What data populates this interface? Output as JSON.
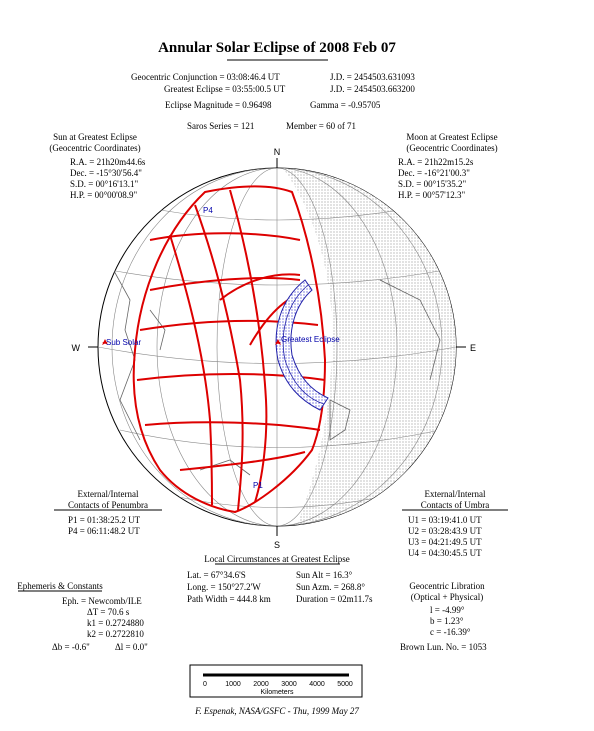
{
  "header": {
    "title": "Annular Solar Eclipse of 2008 Feb 07",
    "rows": [
      [
        "Geocentric Conjunction = 03:08:46.4 UT",
        "J.D. = 2454503.631093"
      ],
      [
        "Greatest Eclipse = 03:55:00.5 UT",
        "J.D. = 2454503.663200"
      ],
      [
        "Eclipse Magnitude = 0.96498",
        "Gamma = -0.95705"
      ],
      [
        "Saros Series = 121",
        "Member = 60 of 71"
      ]
    ]
  },
  "sun": {
    "title": "Sun at Greatest Eclipse",
    "subtitle": "(Geocentric Coordinates)",
    "lines": [
      "R.A. = 21h20m44.6s",
      "Dec. = -15°30'56.4\"",
      "S.D. = 00°16'13.1\"",
      "H.P. = 00°00'08.9\""
    ]
  },
  "moon": {
    "title": "Moon at Greatest Eclipse",
    "subtitle": "(Geocentric Coordinates)",
    "lines": [
      "R.A. = 21h22m15.2s",
      "Dec. = -16°21'00.3\"",
      "S.D. = 00°15'35.2\"",
      "H.P. = 00°57'12.3\""
    ]
  },
  "map": {
    "north": "N",
    "south": "S",
    "east": "E",
    "west": "W",
    "sub_solar": "Sub Solar",
    "greatest_eclipse": "Greatest Eclipse",
    "p4": "P4",
    "p1": "P1"
  },
  "penumbra": {
    "title": "External/Internal",
    "subtitle": "Contacts of Penumbra",
    "lines": [
      "P1 = 01:38:25.2 UT",
      "P4 = 06:11:48.2 UT"
    ]
  },
  "umbra": {
    "title": "External/Internal",
    "subtitle": "Contacts of Umbra",
    "lines": [
      "U1 = 03:19:41.0 UT",
      "U2 = 03:28:43.9 UT",
      "U3 = 04:21:49.5 UT",
      "U4 = 04:30:45.5 UT"
    ]
  },
  "local": {
    "title": "Local Circumstances at Greatest Eclipse",
    "rows": [
      [
        "Lat. = 67°34.6'S",
        "Sun Alt = 16.3°"
      ],
      [
        "Long. = 150°27.2'W",
        "Sun Azm. = 268.8°"
      ],
      [
        "Path Width = 444.8 km",
        "Duration = 02m11.7s"
      ]
    ]
  },
  "ephemeris": {
    "title": "Ephemeris & Constants",
    "lines": [
      "Eph. = Newcomb/ILE",
      "ΔT = 70.6 s",
      "k1 = 0.2724880",
      "k2 = 0.2722810"
    ],
    "last": [
      "Δb = -0.6\"",
      "Δl = 0.0\""
    ]
  },
  "libration": {
    "title": "Geocentric Libration",
    "subtitle": "(Optical + Physical)",
    "lines": [
      "l = -4.99°",
      "b = 1.23°",
      "c = -16.39°"
    ],
    "brown": "Brown Lun. No. = 1053"
  },
  "scale": {
    "ticks": [
      0,
      1000,
      2000,
      3000,
      4000,
      5000
    ],
    "unit": "Kilometers"
  },
  "credit": "F. Espenak, NASA/GSFC - Thu, 1999 May 27"
}
